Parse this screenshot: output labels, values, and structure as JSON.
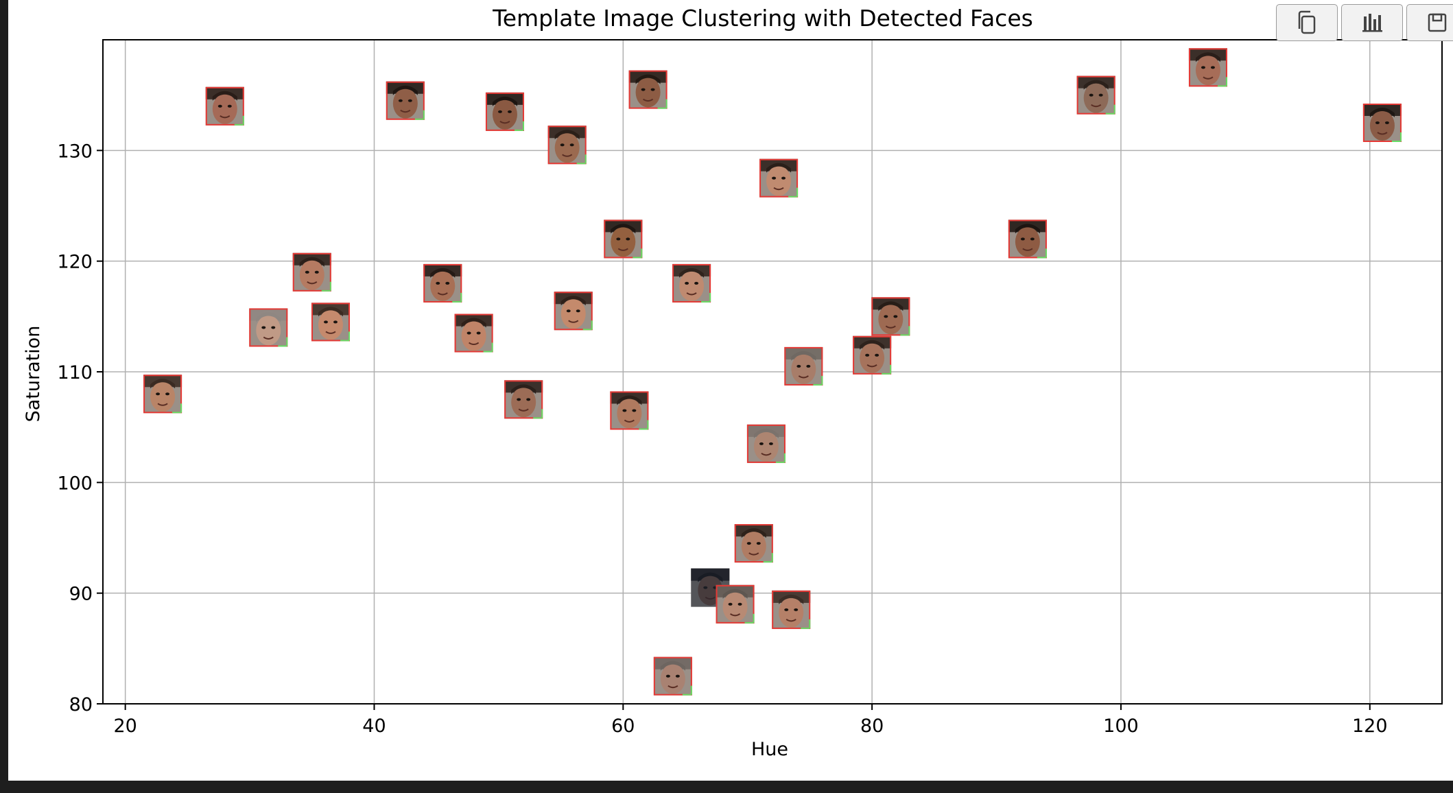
{
  "toolbar": {
    "buttons": [
      {
        "icon": "copy-icon"
      },
      {
        "icon": "bar-chart-icon"
      },
      {
        "icon": "save-icon"
      }
    ]
  },
  "colors": {
    "box_outline": "#e53935",
    "box_accent": "#66dd66",
    "grid": "#b0b0b0",
    "axis": "#000000",
    "page_background": "#1e1e1e"
  },
  "chart_data": {
    "type": "scatter",
    "title": "Template Image Clustering with Detected Faces",
    "xlabel": "Hue",
    "ylabel": "Saturation",
    "xlim": [
      18.2,
      125.8
    ],
    "ylim": [
      80,
      140
    ],
    "xticks": [
      20,
      40,
      60,
      80,
      100,
      120
    ],
    "yticks": [
      80,
      90,
      100,
      110,
      120,
      130
    ],
    "grid": true,
    "marker": "face-thumbnail",
    "points": [
      {
        "x": 23,
        "y": 108,
        "skin": "#b98467",
        "hair": "#3a2a22"
      },
      {
        "x": 28,
        "y": 134,
        "skin": "#a56a57",
        "hair": "#2a1d18"
      },
      {
        "x": 31.5,
        "y": 114,
        "skin": "#c09a86",
        "hair": "#8f8782"
      },
      {
        "x": 35,
        "y": 119,
        "skin": "#b57b62",
        "hair": "#2c201a"
      },
      {
        "x": 36.5,
        "y": 114.5,
        "skin": "#c58a6d",
        "hair": "#3b2b22"
      },
      {
        "x": 42.5,
        "y": 134.5,
        "skin": "#8f5e47",
        "hair": "#1f1612"
      },
      {
        "x": 45.5,
        "y": 118,
        "skin": "#a86f55",
        "hair": "#241a15"
      },
      {
        "x": 48,
        "y": 113.5,
        "skin": "#c08468",
        "hair": "#2e2019"
      },
      {
        "x": 50.5,
        "y": 133.5,
        "skin": "#8a5942",
        "hair": "#1d1511"
      },
      {
        "x": 52,
        "y": 107.5,
        "skin": "#9c6c56",
        "hair": "#2a201b"
      },
      {
        "x": 55.5,
        "y": 130.5,
        "skin": "#9b6a50",
        "hair": "#2b1f18"
      },
      {
        "x": 56,
        "y": 115.5,
        "skin": "#c48a6c",
        "hair": "#2f211a"
      },
      {
        "x": 60,
        "y": 122,
        "skin": "#94603f",
        "hair": "#1e1612"
      },
      {
        "x": 60.5,
        "y": 106.5,
        "skin": "#b07a5f",
        "hair": "#2b1f19"
      },
      {
        "x": 62,
        "y": 135.5,
        "skin": "#8d5c44",
        "hair": "#221913"
      },
      {
        "x": 64,
        "y": 82.5,
        "skin": "#a98272",
        "hair": "#6d6560"
      },
      {
        "x": 65.5,
        "y": 118,
        "skin": "#bf8a70",
        "hair": "#2f231c"
      },
      {
        "x": 67,
        "y": 90.5,
        "skin": "#7d5a4a",
        "hair": "#171313"
      },
      {
        "x": 69,
        "y": 89,
        "skin": "#b88a74",
        "hair": "#5e5650"
      },
      {
        "x": 70.5,
        "y": 94.5,
        "skin": "#b07c63",
        "hair": "#2e221b"
      },
      {
        "x": 71.5,
        "y": 103.5,
        "skin": "#ad8571",
        "hair": "#7b726c"
      },
      {
        "x": 72.5,
        "y": 127.5,
        "skin": "#c08b70",
        "hair": "#2a1f19"
      },
      {
        "x": 73.5,
        "y": 88.5,
        "skin": "#b58068",
        "hair": "#3b2d26"
      },
      {
        "x": 74.5,
        "y": 110.5,
        "skin": "#a87d69",
        "hair": "#6f6862"
      },
      {
        "x": 80,
        "y": 111.5,
        "skin": "#a6735c",
        "hair": "#2e221c"
      },
      {
        "x": 81.5,
        "y": 115,
        "skin": "#9e6a52",
        "hair": "#271d17"
      },
      {
        "x": 92.5,
        "y": 122,
        "skin": "#8e5b43",
        "hair": "#1d1511"
      },
      {
        "x": 98,
        "y": 135,
        "skin": "#8d6a58",
        "hair": "#2c211b"
      },
      {
        "x": 107,
        "y": 137.5,
        "skin": "#a76d58",
        "hair": "#2a1e19"
      },
      {
        "x": 121,
        "y": 132.5,
        "skin": "#8a5b46",
        "hair": "#1e1713"
      }
    ]
  }
}
